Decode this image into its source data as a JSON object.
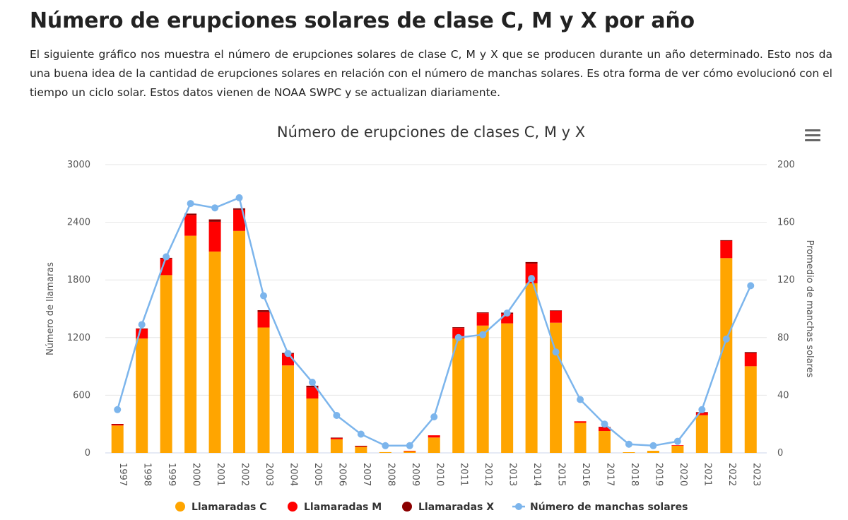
{
  "header": {
    "title": "Número de erupciones solares de clase C, M y X por año",
    "description": "El siguiente gráfico nos muestra el número de erupciones solares de clase C, M y X que se producen durante un año determinado. Esto nos da una buena idea de la cantidad de erupciones solares en relación con el número de manchas solares. Es otra forma de ver cómo evolucionó con el tiempo un ciclo solar. Estos datos vienen de NOAA SWPC y se actualizan diariamente."
  },
  "menu_icon": "hamburger-menu-icon",
  "chart_data": {
    "type": "bar+line",
    "title": "Número de erupciones de clases C, M y X",
    "ylabel": "Número de llamaras",
    "y2label": "Promedio de manchas solares",
    "ylim": [
      0,
      3000
    ],
    "yticks": [
      "0",
      "600",
      "1200",
      "1800",
      "2400",
      "3000"
    ],
    "y2lim": [
      0,
      200
    ],
    "y2ticks": [
      "0",
      "40",
      "80",
      "120",
      "160",
      "200"
    ],
    "grid": true,
    "legend": "bottom",
    "stacked": true,
    "categories": [
      "1997",
      "1998",
      "1999",
      "2000",
      "2001",
      "2002",
      "2003",
      "2004",
      "2005",
      "2006",
      "2007",
      "2008",
      "2009",
      "2010",
      "2011",
      "2012",
      "2013",
      "2014",
      "2015",
      "2016",
      "2017",
      "2018",
      "2019",
      "2020",
      "2021",
      "2022",
      "2023"
    ],
    "series": [
      {
        "name": "Llamaradas C",
        "color": "#FFA500",
        "axis": "left",
        "values": [
          285,
          1190,
          1850,
          2260,
          2095,
          2310,
          1305,
          910,
          566,
          142,
          63,
          8,
          20,
          160,
          1190,
          1325,
          1348,
          1765,
          1355,
          313,
          228,
          7,
          22,
          74,
          392,
          2027,
          902
        ]
      },
      {
        "name": "Llamaradas M",
        "color": "#FF0000",
        "axis": "left",
        "values": [
          15,
          100,
          170,
          215,
          310,
          220,
          160,
          120,
          115,
          13,
          10,
          0,
          1,
          23,
          110,
          130,
          100,
          205,
          126,
          16,
          39,
          0,
          0,
          6,
          30,
          180,
          135
        ]
      },
      {
        "name": "Llamaradas X",
        "color": "#8B0000",
        "axis": "left",
        "values": [
          1,
          5,
          10,
          15,
          25,
          15,
          20,
          10,
          18,
          4,
          1,
          0,
          0,
          0,
          8,
          7,
          12,
          16,
          2,
          0,
          4,
          0,
          0,
          0,
          2,
          7,
          12
        ]
      },
      {
        "name": "Número de manchas solares",
        "color": "#7CB5EC",
        "axis": "right",
        "type": "line",
        "values": [
          30,
          89,
          136,
          173,
          170,
          177,
          109,
          69,
          49,
          26,
          13,
          5,
          5,
          25,
          80,
          82,
          97,
          121,
          70,
          37,
          20,
          6,
          5,
          8,
          30,
          79,
          116
        ]
      }
    ]
  }
}
